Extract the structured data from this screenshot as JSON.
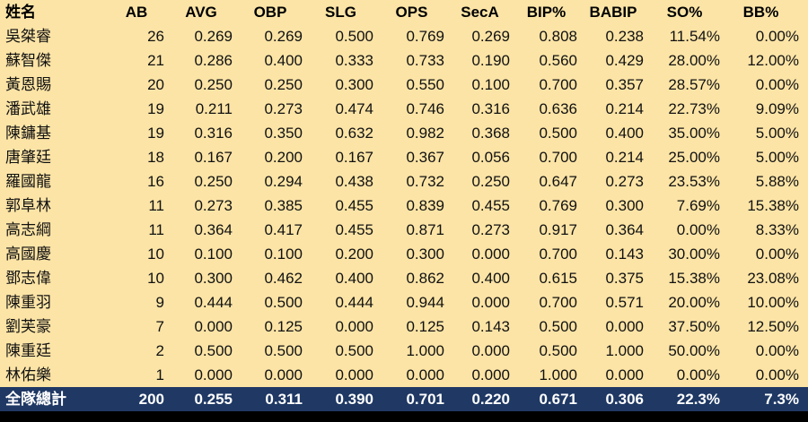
{
  "chart_data": {
    "type": "table",
    "title": "",
    "columns": [
      "姓名",
      "AB",
      "AVG",
      "OBP",
      "SLG",
      "OPS",
      "SecA",
      "BIP%",
      "BABIP",
      "SO%",
      "BB%"
    ],
    "rows": [
      [
        "吳桀睿",
        "26",
        "0.269",
        "0.269",
        "0.500",
        "0.769",
        "0.269",
        "0.808",
        "0.238",
        "11.54%",
        "0.00%"
      ],
      [
        "蘇智傑",
        "21",
        "0.286",
        "0.400",
        "0.333",
        "0.733",
        "0.190",
        "0.560",
        "0.429",
        "28.00%",
        "12.00%"
      ],
      [
        "黃恩賜",
        "20",
        "0.250",
        "0.250",
        "0.300",
        "0.550",
        "0.100",
        "0.700",
        "0.357",
        "28.57%",
        "0.00%"
      ],
      [
        "潘武雄",
        "19",
        "0.211",
        "0.273",
        "0.474",
        "0.746",
        "0.316",
        "0.636",
        "0.214",
        "22.73%",
        "9.09%"
      ],
      [
        "陳鏞基",
        "19",
        "0.316",
        "0.350",
        "0.632",
        "0.982",
        "0.368",
        "0.500",
        "0.400",
        "35.00%",
        "5.00%"
      ],
      [
        "唐肇廷",
        "18",
        "0.167",
        "0.200",
        "0.167",
        "0.367",
        "0.056",
        "0.700",
        "0.214",
        "25.00%",
        "5.00%"
      ],
      [
        "羅國龍",
        "16",
        "0.250",
        "0.294",
        "0.438",
        "0.732",
        "0.250",
        "0.647",
        "0.273",
        "23.53%",
        "5.88%"
      ],
      [
        "郭阜林",
        "11",
        "0.273",
        "0.385",
        "0.455",
        "0.839",
        "0.455",
        "0.769",
        "0.300",
        "7.69%",
        "15.38%"
      ],
      [
        "高志綱",
        "11",
        "0.364",
        "0.417",
        "0.455",
        "0.871",
        "0.273",
        "0.917",
        "0.364",
        "0.00%",
        "8.33%"
      ],
      [
        "高國慶",
        "10",
        "0.100",
        "0.100",
        "0.200",
        "0.300",
        "0.000",
        "0.700",
        "0.143",
        "30.00%",
        "0.00%"
      ],
      [
        "鄧志偉",
        "10",
        "0.300",
        "0.462",
        "0.400",
        "0.862",
        "0.400",
        "0.615",
        "0.375",
        "15.38%",
        "23.08%"
      ],
      [
        "陳重羽",
        "9",
        "0.444",
        "0.500",
        "0.444",
        "0.944",
        "0.000",
        "0.700",
        "0.571",
        "20.00%",
        "10.00%"
      ],
      [
        "劉芙豪",
        "7",
        "0.000",
        "0.125",
        "0.000",
        "0.125",
        "0.143",
        "0.500",
        "0.000",
        "37.50%",
        "12.50%"
      ],
      [
        "陳重廷",
        "2",
        "0.500",
        "0.500",
        "0.500",
        "1.000",
        "0.000",
        "0.500",
        "1.000",
        "50.00%",
        "0.00%"
      ],
      [
        "林佑樂",
        "1",
        "0.000",
        "0.000",
        "0.000",
        "0.000",
        "0.000",
        "1.000",
        "0.000",
        "0.00%",
        "0.00%"
      ]
    ],
    "total_row": [
      "全隊總計",
      "200",
      "0.255",
      "0.311",
      "0.390",
      "0.701",
      "0.220",
      "0.671",
      "0.306",
      "22.3%",
      "7.3%"
    ],
    "legend": null,
    "grid": false
  },
  "colors": {
    "row_background": "#FCE4A6",
    "header_text": "#000000",
    "body_text": "#111111",
    "total_background": "#1F3864",
    "total_text": "#FFFFFF",
    "bottom_bar": "#000000"
  }
}
